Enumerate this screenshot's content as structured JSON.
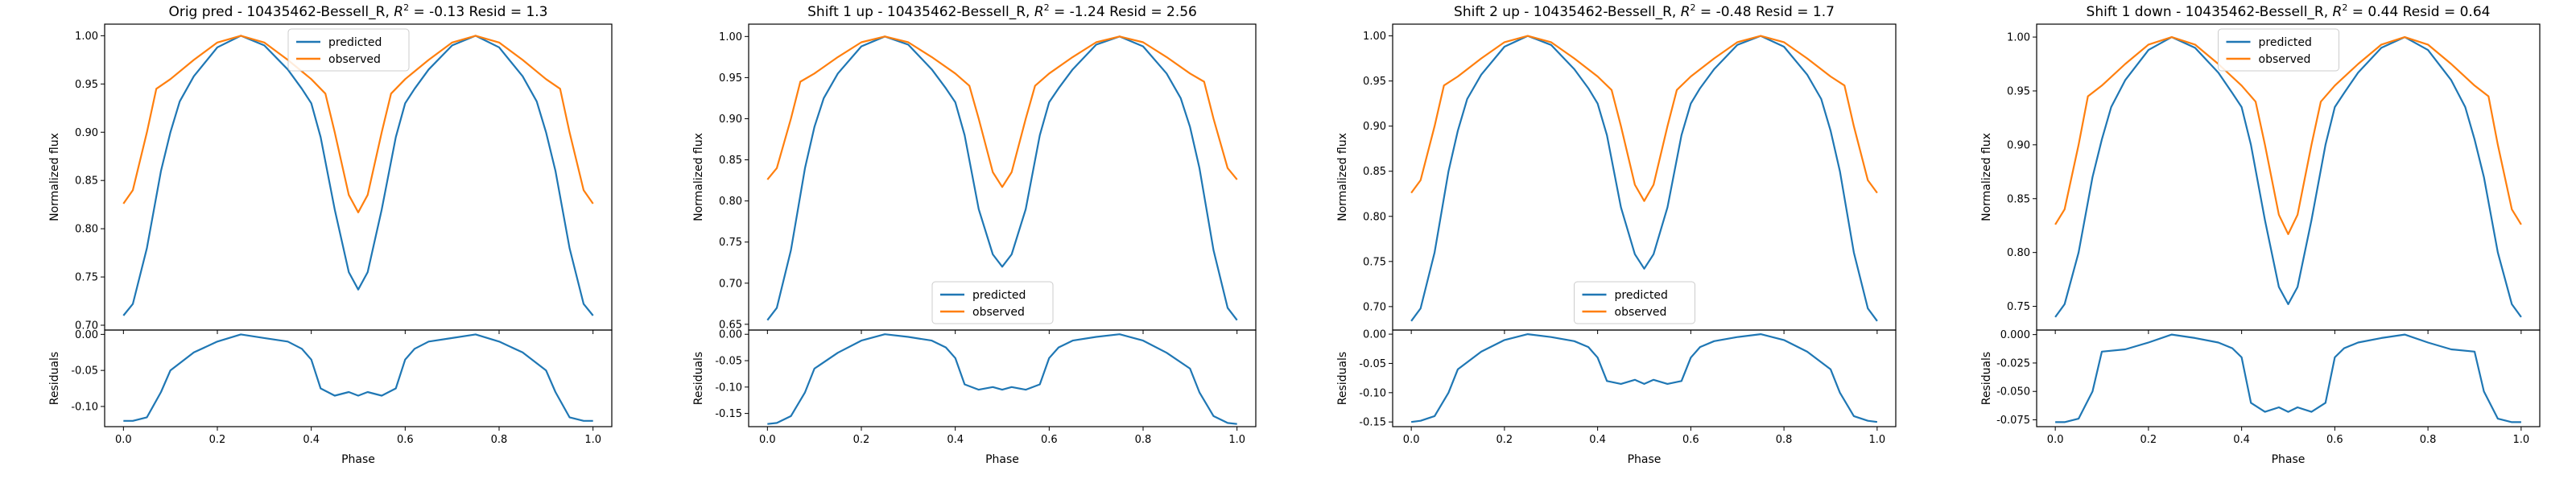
{
  "colors": {
    "predicted": "#1f77b4",
    "observed": "#ff7f0e"
  },
  "chart_data": [
    {
      "type": "line",
      "title": "Orig pred - 10435462-Bessell_R, $R^2$ = -0.13 Resid = 1.3",
      "xlabel": "Phase",
      "ylabel": "Normalized flux",
      "resid_ylabel": "Residuals",
      "x_ticks": [
        "0.0",
        "0.2",
        "0.4",
        "0.6",
        "0.8",
        "1.0"
      ],
      "xlim": [
        -0.04,
        1.04
      ],
      "ylim": [
        0.695,
        1.012
      ],
      "y_ticks": [
        "0.70",
        "0.75",
        "0.80",
        "0.85",
        "0.90",
        "0.95",
        "1.00"
      ],
      "resid_ylim": [
        -0.128,
        0.006
      ],
      "resid_ticks": [
        "0.00",
        "-0.05",
        "-0.10"
      ],
      "legend": {
        "position": "upper center",
        "entries": [
          "predicted",
          "observed"
        ]
      },
      "series": [
        {
          "name": "predicted",
          "x": [
            0.0,
            0.02,
            0.05,
            0.08,
            0.1,
            0.12,
            0.15,
            0.2,
            0.25,
            0.3,
            0.35,
            0.38,
            0.4,
            0.42,
            0.45,
            0.48,
            0.5,
            0.52,
            0.55,
            0.58,
            0.6,
            0.62,
            0.65,
            0.7,
            0.75,
            0.8,
            0.85,
            0.88,
            0.9,
            0.92,
            0.95,
            0.98,
            1.0
          ],
          "y": [
            0.71,
            0.722,
            0.78,
            0.86,
            0.9,
            0.932,
            0.958,
            0.988,
            1.0,
            0.99,
            0.965,
            0.945,
            0.93,
            0.895,
            0.82,
            0.755,
            0.737,
            0.755,
            0.82,
            0.895,
            0.93,
            0.945,
            0.965,
            0.99,
            1.0,
            0.988,
            0.958,
            0.932,
            0.9,
            0.86,
            0.78,
            0.722,
            0.71
          ]
        },
        {
          "name": "observed",
          "x": [
            0.0,
            0.02,
            0.05,
            0.07,
            0.1,
            0.15,
            0.2,
            0.25,
            0.3,
            0.35,
            0.4,
            0.43,
            0.45,
            0.48,
            0.5,
            0.52,
            0.55,
            0.57,
            0.6,
            0.65,
            0.7,
            0.75,
            0.8,
            0.85,
            0.9,
            0.93,
            0.95,
            0.98,
            1.0
          ],
          "y": [
            0.826,
            0.84,
            0.9,
            0.945,
            0.955,
            0.975,
            0.993,
            1.0,
            0.993,
            0.975,
            0.955,
            0.94,
            0.9,
            0.835,
            0.817,
            0.835,
            0.9,
            0.94,
            0.955,
            0.975,
            0.993,
            1.0,
            0.993,
            0.975,
            0.955,
            0.945,
            0.9,
            0.84,
            0.826
          ]
        },
        {
          "name": "residual",
          "x": [
            0.0,
            0.02,
            0.05,
            0.08,
            0.1,
            0.15,
            0.2,
            0.25,
            0.3,
            0.35,
            0.38,
            0.4,
            0.42,
            0.45,
            0.48,
            0.5,
            0.52,
            0.55,
            0.58,
            0.6,
            0.62,
            0.65,
            0.7,
            0.75,
            0.8,
            0.85,
            0.9,
            0.92,
            0.95,
            0.98,
            1.0
          ],
          "y": [
            -0.12,
            -0.12,
            -0.115,
            -0.08,
            -0.05,
            -0.025,
            -0.01,
            0.0,
            -0.005,
            -0.01,
            -0.02,
            -0.035,
            -0.075,
            -0.085,
            -0.08,
            -0.085,
            -0.08,
            -0.085,
            -0.075,
            -0.035,
            -0.02,
            -0.01,
            -0.005,
            0.0,
            -0.01,
            -0.025,
            -0.05,
            -0.08,
            -0.115,
            -0.12,
            -0.12
          ]
        }
      ]
    },
    {
      "type": "line",
      "title": "Shift 1 up - 10435462-Bessell_R, $R^2$ = -1.24 Resid = 2.56",
      "xlabel": "Phase",
      "ylabel": "Normalized flux",
      "resid_ylabel": "Residuals",
      "x_ticks": [
        "0.0",
        "0.2",
        "0.4",
        "0.6",
        "0.8",
        "1.0"
      ],
      "xlim": [
        -0.04,
        1.04
      ],
      "ylim": [
        0.643,
        1.015
      ],
      "y_ticks": [
        "0.65",
        "0.70",
        "0.75",
        "0.80",
        "0.85",
        "0.90",
        "0.95",
        "1.00"
      ],
      "resid_ylim": [
        -0.175,
        0.008
      ],
      "resid_ticks": [
        "0.00",
        "-0.05",
        "-0.10",
        "-0.15"
      ],
      "legend": {
        "position": "lower center",
        "entries": [
          "predicted",
          "observed"
        ]
      },
      "series": [
        {
          "name": "predicted",
          "x": [
            0.0,
            0.02,
            0.05,
            0.08,
            0.1,
            0.12,
            0.15,
            0.2,
            0.25,
            0.3,
            0.35,
            0.38,
            0.4,
            0.42,
            0.45,
            0.48,
            0.5,
            0.52,
            0.55,
            0.58,
            0.6,
            0.62,
            0.65,
            0.7,
            0.75,
            0.8,
            0.85,
            0.88,
            0.9,
            0.92,
            0.95,
            0.98,
            1.0
          ],
          "y": [
            0.655,
            0.67,
            0.74,
            0.84,
            0.89,
            0.925,
            0.955,
            0.988,
            1.0,
            0.99,
            0.96,
            0.937,
            0.92,
            0.88,
            0.79,
            0.735,
            0.72,
            0.735,
            0.79,
            0.88,
            0.92,
            0.937,
            0.96,
            0.99,
            1.0,
            0.988,
            0.955,
            0.925,
            0.89,
            0.84,
            0.74,
            0.67,
            0.655
          ]
        },
        {
          "name": "observed",
          "x": [
            0.0,
            0.02,
            0.05,
            0.07,
            0.1,
            0.15,
            0.2,
            0.25,
            0.3,
            0.35,
            0.4,
            0.43,
            0.45,
            0.48,
            0.5,
            0.52,
            0.55,
            0.57,
            0.6,
            0.65,
            0.7,
            0.75,
            0.8,
            0.85,
            0.9,
            0.93,
            0.95,
            0.98,
            1.0
          ],
          "y": [
            0.826,
            0.84,
            0.9,
            0.945,
            0.955,
            0.975,
            0.993,
            1.0,
            0.993,
            0.975,
            0.955,
            0.94,
            0.9,
            0.835,
            0.817,
            0.835,
            0.9,
            0.94,
            0.955,
            0.975,
            0.993,
            1.0,
            0.993,
            0.975,
            0.955,
            0.945,
            0.9,
            0.84,
            0.826
          ]
        },
        {
          "name": "residual",
          "x": [
            0.0,
            0.02,
            0.05,
            0.08,
            0.1,
            0.15,
            0.2,
            0.25,
            0.3,
            0.35,
            0.38,
            0.4,
            0.42,
            0.45,
            0.48,
            0.5,
            0.52,
            0.55,
            0.58,
            0.6,
            0.62,
            0.65,
            0.7,
            0.75,
            0.8,
            0.85,
            0.9,
            0.92,
            0.95,
            0.98,
            1.0
          ],
          "y": [
            -0.17,
            -0.168,
            -0.155,
            -0.11,
            -0.065,
            -0.035,
            -0.012,
            0.0,
            -0.005,
            -0.012,
            -0.025,
            -0.045,
            -0.095,
            -0.105,
            -0.1,
            -0.105,
            -0.1,
            -0.105,
            -0.095,
            -0.045,
            -0.025,
            -0.012,
            -0.005,
            0.0,
            -0.012,
            -0.035,
            -0.065,
            -0.11,
            -0.155,
            -0.168,
            -0.17
          ]
        }
      ]
    },
    {
      "type": "line",
      "title": "Shift 2 up - 10435462-Bessell_R, $R^2$ = -0.48 Resid = 1.7",
      "xlabel": "Phase",
      "ylabel": "Normalized flux",
      "resid_ylabel": "Residuals",
      "x_ticks": [
        "0.0",
        "0.2",
        "0.4",
        "0.6",
        "0.8",
        "1.0"
      ],
      "xlim": [
        -0.04,
        1.04
      ],
      "ylim": [
        0.674,
        1.013
      ],
      "y_ticks": [
        "0.70",
        "0.75",
        "0.80",
        "0.85",
        "0.90",
        "0.95",
        "1.00"
      ],
      "resid_ylim": [
        -0.158,
        0.007
      ],
      "resid_ticks": [
        "0.00",
        "-0.05",
        "-0.10",
        "-0.15"
      ],
      "legend": {
        "position": "lower center",
        "entries": [
          "predicted",
          "observed"
        ]
      },
      "series": [
        {
          "name": "predicted",
          "x": [
            0.0,
            0.02,
            0.05,
            0.08,
            0.1,
            0.12,
            0.15,
            0.2,
            0.25,
            0.3,
            0.35,
            0.38,
            0.4,
            0.42,
            0.45,
            0.48,
            0.5,
            0.52,
            0.55,
            0.58,
            0.6,
            0.62,
            0.65,
            0.7,
            0.75,
            0.8,
            0.85,
            0.88,
            0.9,
            0.92,
            0.95,
            0.98,
            1.0
          ],
          "y": [
            0.684,
            0.698,
            0.76,
            0.85,
            0.895,
            0.93,
            0.957,
            0.988,
            1.0,
            0.99,
            0.963,
            0.942,
            0.925,
            0.89,
            0.81,
            0.758,
            0.742,
            0.758,
            0.81,
            0.89,
            0.925,
            0.942,
            0.963,
            0.99,
            1.0,
            0.988,
            0.957,
            0.93,
            0.895,
            0.85,
            0.76,
            0.698,
            0.684
          ]
        },
        {
          "name": "observed",
          "x": [
            0.0,
            0.02,
            0.05,
            0.07,
            0.1,
            0.15,
            0.2,
            0.25,
            0.3,
            0.35,
            0.4,
            0.43,
            0.45,
            0.48,
            0.5,
            0.52,
            0.55,
            0.57,
            0.6,
            0.65,
            0.7,
            0.75,
            0.8,
            0.85,
            0.9,
            0.93,
            0.95,
            0.98,
            1.0
          ],
          "y": [
            0.826,
            0.84,
            0.9,
            0.945,
            0.955,
            0.975,
            0.993,
            1.0,
            0.993,
            0.975,
            0.955,
            0.94,
            0.9,
            0.835,
            0.817,
            0.835,
            0.9,
            0.94,
            0.955,
            0.975,
            0.993,
            1.0,
            0.993,
            0.975,
            0.955,
            0.945,
            0.9,
            0.84,
            0.826
          ]
        },
        {
          "name": "residual",
          "x": [
            0.0,
            0.02,
            0.05,
            0.08,
            0.1,
            0.15,
            0.2,
            0.25,
            0.3,
            0.35,
            0.38,
            0.4,
            0.42,
            0.45,
            0.48,
            0.5,
            0.52,
            0.55,
            0.58,
            0.6,
            0.62,
            0.65,
            0.7,
            0.75,
            0.8,
            0.85,
            0.9,
            0.92,
            0.95,
            0.98,
            1.0
          ],
          "y": [
            -0.15,
            -0.148,
            -0.14,
            -0.1,
            -0.06,
            -0.03,
            -0.01,
            0.0,
            -0.005,
            -0.012,
            -0.022,
            -0.04,
            -0.08,
            -0.085,
            -0.078,
            -0.085,
            -0.078,
            -0.085,
            -0.08,
            -0.04,
            -0.022,
            -0.012,
            -0.005,
            0.0,
            -0.01,
            -0.03,
            -0.06,
            -0.1,
            -0.14,
            -0.148,
            -0.15
          ]
        }
      ]
    },
    {
      "type": "line",
      "title": "Shift 1 down - 10435462-Bessell_R, $R^2$ = 0.44 Resid = 0.64",
      "xlabel": "Phase",
      "ylabel": "Normalized flux",
      "resid_ylabel": "Residuals",
      "x_ticks": [
        "0.0",
        "0.2",
        "0.4",
        "0.6",
        "0.8",
        "1.0"
      ],
      "xlim": [
        -0.04,
        1.04
      ],
      "ylim": [
        0.728,
        1.012
      ],
      "y_ticks": [
        "0.75",
        "0.80",
        "0.85",
        "0.90",
        "0.95",
        "1.00"
      ],
      "resid_ylim": [
        -0.081,
        0.004
      ],
      "resid_ticks": [
        "0.000",
        "-0.025",
        "-0.050",
        "-0.075"
      ],
      "legend": {
        "position": "upper center",
        "entries": [
          "predicted",
          "observed"
        ]
      },
      "series": [
        {
          "name": "predicted",
          "x": [
            0.0,
            0.02,
            0.05,
            0.08,
            0.1,
            0.12,
            0.15,
            0.2,
            0.25,
            0.3,
            0.35,
            0.38,
            0.4,
            0.42,
            0.45,
            0.48,
            0.5,
            0.52,
            0.55,
            0.58,
            0.6,
            0.62,
            0.65,
            0.7,
            0.75,
            0.8,
            0.85,
            0.88,
            0.9,
            0.92,
            0.95,
            0.98,
            1.0
          ],
          "y": [
            0.74,
            0.752,
            0.8,
            0.87,
            0.905,
            0.935,
            0.96,
            0.988,
            1.0,
            0.99,
            0.967,
            0.948,
            0.935,
            0.9,
            0.83,
            0.768,
            0.752,
            0.768,
            0.83,
            0.9,
            0.935,
            0.948,
            0.967,
            0.99,
            1.0,
            0.988,
            0.96,
            0.935,
            0.905,
            0.87,
            0.8,
            0.752,
            0.74
          ]
        },
        {
          "name": "observed",
          "x": [
            0.0,
            0.02,
            0.05,
            0.07,
            0.1,
            0.15,
            0.2,
            0.25,
            0.3,
            0.35,
            0.4,
            0.43,
            0.45,
            0.48,
            0.5,
            0.52,
            0.55,
            0.57,
            0.6,
            0.65,
            0.7,
            0.75,
            0.8,
            0.85,
            0.9,
            0.93,
            0.95,
            0.98,
            1.0
          ],
          "y": [
            0.826,
            0.84,
            0.9,
            0.945,
            0.955,
            0.975,
            0.993,
            1.0,
            0.993,
            0.975,
            0.955,
            0.94,
            0.9,
            0.835,
            0.817,
            0.835,
            0.9,
            0.94,
            0.955,
            0.975,
            0.993,
            1.0,
            0.993,
            0.975,
            0.955,
            0.945,
            0.9,
            0.84,
            0.826
          ]
        },
        {
          "name": "residual",
          "x": [
            0.0,
            0.02,
            0.05,
            0.08,
            0.1,
            0.15,
            0.2,
            0.25,
            0.3,
            0.35,
            0.38,
            0.4,
            0.42,
            0.45,
            0.48,
            0.5,
            0.52,
            0.55,
            0.58,
            0.6,
            0.62,
            0.65,
            0.7,
            0.75,
            0.8,
            0.85,
            0.9,
            0.92,
            0.95,
            0.98,
            1.0
          ],
          "y": [
            -0.077,
            -0.077,
            -0.074,
            -0.05,
            -0.015,
            -0.013,
            -0.007,
            0.0,
            -0.003,
            -0.007,
            -0.012,
            -0.02,
            -0.06,
            -0.068,
            -0.064,
            -0.068,
            -0.064,
            -0.068,
            -0.06,
            -0.02,
            -0.012,
            -0.007,
            -0.003,
            0.0,
            -0.007,
            -0.013,
            -0.015,
            -0.05,
            -0.074,
            -0.077,
            -0.077
          ]
        }
      ]
    }
  ]
}
